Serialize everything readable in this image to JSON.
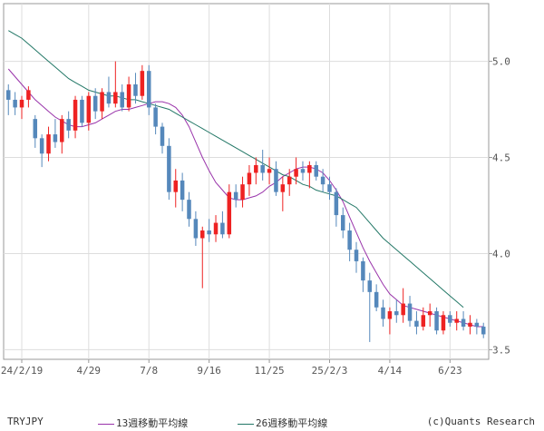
{
  "chart_data": {
    "type": "candlestick",
    "title": "",
    "symbol": "TRYJPY",
    "credit": "(c)Quants Research",
    "x_tick_labels": [
      "24/2/19",
      "4/29",
      "7/8",
      "9/16",
      "11/25",
      "25/2/3",
      "4/14",
      "6/23"
    ],
    "y_ticks": [
      3.5,
      4.0,
      4.5,
      5.0
    ],
    "y_tick_labels": [
      "3.5",
      "4.0",
      "4.5",
      "5.0"
    ],
    "ylim": [
      3.45,
      5.3
    ],
    "up_color": "#ee2222",
    "down_color": "#5588bb",
    "grid": true,
    "moving_averages": [
      {
        "name": "13週移動平均線",
        "color": "#9933aa",
        "values": [
          4.96,
          4.92,
          4.88,
          4.84,
          4.8,
          4.77,
          4.74,
          4.71,
          4.69,
          4.67,
          4.66,
          4.66,
          4.67,
          4.68,
          4.7,
          4.72,
          4.74,
          4.75,
          4.75,
          4.76,
          4.77,
          4.78,
          4.79,
          4.79,
          4.78,
          4.76,
          4.72,
          4.66,
          4.58,
          4.5,
          4.43,
          4.37,
          4.33,
          4.29,
          4.28,
          4.28,
          4.29,
          4.3,
          4.32,
          4.35,
          4.37,
          4.4,
          4.42,
          4.44,
          4.45,
          4.45,
          4.44,
          4.42,
          4.38,
          4.33,
          4.27,
          4.19,
          4.11,
          4.03,
          3.96,
          3.9,
          3.84,
          3.79,
          3.76,
          3.73,
          3.72,
          3.71,
          3.7,
          3.69,
          3.68,
          3.67,
          3.66,
          3.65,
          3.64,
          3.63,
          3.62,
          3.62
        ]
      },
      {
        "name": "26週移動平均線",
        "color": "#227766",
        "values": [
          5.16,
          5.14,
          5.12,
          5.09,
          5.06,
          5.03,
          5.0,
          4.97,
          4.94,
          4.91,
          4.89,
          4.87,
          4.85,
          4.84,
          4.83,
          4.82,
          4.82,
          4.81,
          4.8,
          4.8,
          4.79,
          4.78,
          4.77,
          4.76,
          4.75,
          4.73,
          4.71,
          4.69,
          4.67,
          4.65,
          4.63,
          4.61,
          4.59,
          4.57,
          4.55,
          4.53,
          4.51,
          4.49,
          4.47,
          4.45,
          4.43,
          4.41,
          4.4,
          4.38,
          4.36,
          4.35,
          4.33,
          4.32,
          4.31,
          4.3,
          4.28,
          4.26,
          4.24,
          4.2,
          4.16,
          4.12,
          4.08,
          4.05,
          4.02,
          3.99,
          3.96,
          3.93,
          3.9,
          3.87,
          3.84,
          3.81,
          3.78,
          3.75,
          3.72
        ]
      }
    ],
    "ohlc": [
      [
        4.85,
        4.88,
        4.72,
        4.8
      ],
      [
        4.8,
        4.84,
        4.72,
        4.76
      ],
      [
        4.76,
        4.82,
        4.7,
        4.8
      ],
      [
        4.8,
        4.87,
        4.76,
        4.85
      ],
      [
        4.7,
        4.72,
        4.55,
        4.6
      ],
      [
        4.6,
        4.62,
        4.45,
        4.52
      ],
      [
        4.52,
        4.66,
        4.48,
        4.62
      ],
      [
        4.62,
        4.7,
        4.55,
        4.58
      ],
      [
        4.58,
        4.72,
        4.52,
        4.7
      ],
      [
        4.7,
        4.74,
        4.6,
        4.64
      ],
      [
        4.64,
        4.82,
        4.6,
        4.8
      ],
      [
        4.8,
        4.82,
        4.66,
        4.68
      ],
      [
        4.68,
        4.84,
        4.64,
        4.82
      ],
      [
        4.82,
        4.86,
        4.7,
        4.74
      ],
      [
        4.74,
        4.86,
        4.7,
        4.84
      ],
      [
        4.84,
        4.92,
        4.76,
        4.78
      ],
      [
        4.78,
        5.0,
        4.76,
        4.84
      ],
      [
        4.84,
        4.88,
        4.74,
        4.76
      ],
      [
        4.76,
        4.92,
        4.74,
        4.88
      ],
      [
        4.88,
        4.94,
        4.78,
        4.82
      ],
      [
        4.82,
        4.98,
        4.8,
        4.95
      ],
      [
        4.95,
        4.98,
        4.72,
        4.76
      ],
      [
        4.76,
        4.78,
        4.62,
        4.66
      ],
      [
        4.66,
        4.68,
        4.52,
        4.56
      ],
      [
        4.56,
        4.6,
        4.28,
        4.32
      ],
      [
        4.32,
        4.44,
        4.24,
        4.38
      ],
      [
        4.38,
        4.42,
        4.22,
        4.28
      ],
      [
        4.28,
        4.32,
        4.14,
        4.18
      ],
      [
        4.18,
        4.22,
        4.04,
        4.08
      ],
      [
        4.08,
        4.14,
        3.82,
        4.12
      ],
      [
        4.12,
        4.18,
        4.06,
        4.1
      ],
      [
        4.1,
        4.2,
        4.06,
        4.16
      ],
      [
        4.16,
        4.22,
        4.08,
        4.1
      ],
      [
        4.1,
        4.36,
        4.08,
        4.32
      ],
      [
        4.32,
        4.36,
        4.24,
        4.28
      ],
      [
        4.28,
        4.4,
        4.24,
        4.36
      ],
      [
        4.36,
        4.46,
        4.3,
        4.42
      ],
      [
        4.42,
        4.5,
        4.36,
        4.46
      ],
      [
        4.46,
        4.54,
        4.38,
        4.42
      ],
      [
        4.42,
        4.5,
        4.36,
        4.44
      ],
      [
        4.44,
        4.48,
        4.3,
        4.32
      ],
      [
        4.32,
        4.4,
        4.22,
        4.36
      ],
      [
        4.36,
        4.44,
        4.3,
        4.4
      ],
      [
        4.4,
        4.5,
        4.36,
        4.44
      ],
      [
        4.44,
        4.48,
        4.38,
        4.42
      ],
      [
        4.42,
        4.48,
        4.34,
        4.46
      ],
      [
        4.46,
        4.48,
        4.38,
        4.4
      ],
      [
        4.4,
        4.44,
        4.32,
        4.36
      ],
      [
        4.36,
        4.4,
        4.28,
        4.32
      ],
      [
        4.32,
        4.34,
        4.14,
        4.2
      ],
      [
        4.2,
        4.24,
        4.08,
        4.12
      ],
      [
        4.12,
        4.16,
        3.96,
        4.02
      ],
      [
        4.02,
        4.06,
        3.9,
        3.96
      ],
      [
        3.96,
        3.98,
        3.8,
        3.86
      ],
      [
        3.86,
        3.9,
        3.54,
        3.8
      ],
      [
        3.8,
        3.84,
        3.7,
        3.72
      ],
      [
        3.72,
        3.76,
        3.62,
        3.66
      ],
      [
        3.66,
        3.72,
        3.58,
        3.7
      ],
      [
        3.7,
        3.76,
        3.64,
        3.68
      ],
      [
        3.68,
        3.82,
        3.64,
        3.74
      ],
      [
        3.74,
        3.78,
        3.62,
        3.65
      ],
      [
        3.65,
        3.7,
        3.58,
        3.62
      ],
      [
        3.62,
        3.72,
        3.6,
        3.68
      ],
      [
        3.68,
        3.74,
        3.62,
        3.7
      ],
      [
        3.7,
        3.72,
        3.58,
        3.6
      ],
      [
        3.6,
        3.7,
        3.58,
        3.68
      ],
      [
        3.68,
        3.7,
        3.62,
        3.64
      ],
      [
        3.64,
        3.7,
        3.6,
        3.66
      ],
      [
        3.66,
        3.7,
        3.6,
        3.62
      ],
      [
        3.62,
        3.68,
        3.58,
        3.64
      ],
      [
        3.64,
        3.66,
        3.58,
        3.62
      ],
      [
        3.62,
        3.64,
        3.56,
        3.58
      ]
    ]
  }
}
